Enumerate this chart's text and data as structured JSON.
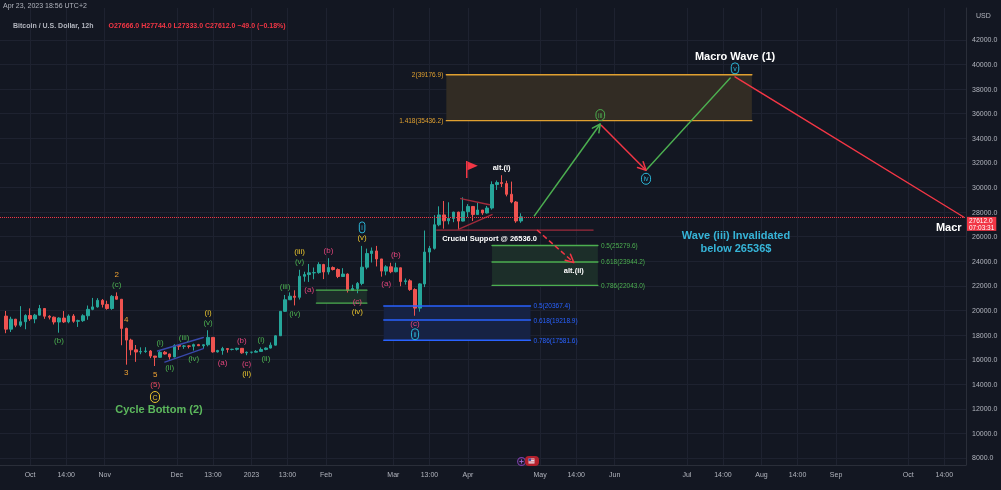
{
  "chart_data": {
    "type": "candlestick",
    "title": "Bitcoin / U.S. Dollar, 12h",
    "subtitle": "O27666.0 H27744.0 L27333.0 C27612.0 −49.0 (−0.18%)",
    "ylabel": "USD",
    "x": [
      "2022-09-21",
      "2022-09-23",
      "2022-09-25",
      "2022-09-27",
      "2022-09-29",
      "2022-10-01",
      "2022-10-03",
      "2022-10-05",
      "2022-10-07",
      "2022-10-09",
      "2022-10-11",
      "2022-10-13",
      "2022-10-15",
      "2022-10-17",
      "2022-10-19",
      "2022-10-21",
      "2022-10-23",
      "2022-10-25",
      "2022-10-27",
      "2022-10-29",
      "2022-10-31",
      "2022-11-02",
      "2022-11-04",
      "2022-11-06",
      "2022-11-08",
      "2022-11-10",
      "2022-11-12",
      "2022-11-14",
      "2022-11-16",
      "2022-11-18",
      "2022-11-20",
      "2022-11-22",
      "2022-11-24",
      "2022-11-26",
      "2022-11-28",
      "2022-11-30",
      "2022-12-02",
      "2022-12-04",
      "2022-12-06",
      "2022-12-08",
      "2022-12-10",
      "2022-12-12",
      "2022-12-14",
      "2022-12-16",
      "2022-12-18",
      "2022-12-20",
      "2022-12-22",
      "2022-12-24",
      "2022-12-26",
      "2022-12-28",
      "2022-12-30",
      "2023-01-01",
      "2023-01-03",
      "2023-01-05",
      "2023-01-07",
      "2023-01-09",
      "2023-01-11",
      "2023-01-13",
      "2023-01-15",
      "2023-01-17",
      "2023-01-19",
      "2023-01-21",
      "2023-01-23",
      "2023-01-25",
      "2023-01-27",
      "2023-01-29",
      "2023-01-31",
      "2023-02-02",
      "2023-02-04",
      "2023-02-06",
      "2023-02-08",
      "2023-02-10",
      "2023-02-12",
      "2023-02-14",
      "2023-02-16",
      "2023-02-18",
      "2023-02-20",
      "2023-02-22",
      "2023-02-24",
      "2023-02-26",
      "2023-02-28",
      "2023-03-02",
      "2023-03-04",
      "2023-03-06",
      "2023-03-08",
      "2023-03-10",
      "2023-03-12",
      "2023-03-14",
      "2023-03-16",
      "2023-03-18",
      "2023-03-20",
      "2023-03-22",
      "2023-03-24",
      "2023-03-26",
      "2023-03-28",
      "2023-03-30",
      "2023-04-01",
      "2023-04-03",
      "2023-04-05",
      "2023-04-07",
      "2023-04-09",
      "2023-04-11",
      "2023-04-13",
      "2023-04-15",
      "2023-04-17",
      "2023-04-19",
      "2023-04-21",
      "2023-04-23"
    ],
    "ohlc": [
      [
        19540,
        19960,
        18150,
        18480
      ],
      [
        18480,
        19490,
        18250,
        19290
      ],
      [
        19290,
        19310,
        18640,
        18800
      ],
      [
        18800,
        20350,
        18660,
        19080
      ],
      [
        19080,
        19690,
        18470,
        19590
      ],
      [
        19590,
        20170,
        19150,
        19310
      ],
      [
        19310,
        19720,
        18960,
        19620
      ],
      [
        19620,
        20450,
        19600,
        20160
      ],
      [
        20160,
        20160,
        19320,
        19530
      ],
      [
        19530,
        19610,
        19270,
        19450
      ],
      [
        19450,
        19510,
        18860,
        19060
      ],
      [
        19060,
        19450,
        18190,
        19380
      ],
      [
        19380,
        19950,
        18980,
        19070
      ],
      [
        19070,
        19680,
        18960,
        19550
      ],
      [
        19550,
        19700,
        19000,
        19120
      ],
      [
        19120,
        19250,
        18660,
        19170
      ],
      [
        19170,
        19690,
        19070,
        19570
      ],
      [
        19570,
        20400,
        19240,
        20090
      ],
      [
        20090,
        21020,
        20020,
        20290
      ],
      [
        20290,
        21000,
        20230,
        20820
      ],
      [
        20820,
        20930,
        20240,
        20490
      ],
      [
        20490,
        20790,
        20060,
        20160
      ],
      [
        20160,
        21250,
        20050,
        21150
      ],
      [
        21150,
        21470,
        20880,
        20910
      ],
      [
        20910,
        20910,
        17170,
        18540
      ],
      [
        18540,
        18600,
        15590,
        17590
      ],
      [
        17590,
        17700,
        16360,
        16800
      ],
      [
        16800,
        17190,
        15820,
        16620
      ],
      [
        16620,
        17000,
        16440,
        16660
      ],
      [
        16660,
        17010,
        16550,
        16700
      ],
      [
        16700,
        16780,
        16120,
        16290
      ],
      [
        16290,
        16300,
        15480,
        16190
      ],
      [
        16190,
        16760,
        16150,
        16600
      ],
      [
        16600,
        16700,
        16410,
        16460
      ],
      [
        16460,
        16480,
        16000,
        16220
      ],
      [
        16220,
        17250,
        16190,
        17160
      ],
      [
        17160,
        17200,
        16790,
        17090
      ],
      [
        17090,
        17190,
        16880,
        17110
      ],
      [
        17110,
        17160,
        16910,
        17090
      ],
      [
        17090,
        17300,
        16740,
        17220
      ],
      [
        17220,
        17280,
        17110,
        17130
      ],
      [
        17130,
        17240,
        16870,
        17210
      ],
      [
        17210,
        18390,
        17080,
        17810
      ],
      [
        17810,
        17840,
        16570,
        16630
      ],
      [
        16630,
        16800,
        16580,
        16740
      ],
      [
        16740,
        17040,
        16400,
        16900
      ],
      [
        16900,
        16940,
        16570,
        16830
      ],
      [
        16830,
        16880,
        16750,
        16840
      ],
      [
        16840,
        16960,
        16740,
        16920
      ],
      [
        16920,
        16940,
        16480,
        16550
      ],
      [
        16550,
        16660,
        16360,
        16600
      ],
      [
        16600,
        16630,
        16500,
        16610
      ],
      [
        16610,
        16780,
        16600,
        16670
      ],
      [
        16670,
        16990,
        16650,
        16830
      ],
      [
        16830,
        16990,
        16760,
        16940
      ],
      [
        16940,
        17400,
        16910,
        17180
      ],
      [
        17180,
        17980,
        17150,
        17940
      ],
      [
        17940,
        19950,
        17920,
        19930
      ],
      [
        19930,
        21260,
        19890,
        20870
      ],
      [
        20870,
        21470,
        20850,
        21160
      ],
      [
        21160,
        21640,
        20410,
        21070
      ],
      [
        21070,
        23310,
        20890,
        22780
      ],
      [
        22780,
        23150,
        22340,
        22920
      ],
      [
        22920,
        23780,
        22320,
        23060
      ],
      [
        23060,
        23490,
        22540,
        23080
      ],
      [
        23080,
        23920,
        22990,
        23740
      ],
      [
        23740,
        23790,
        22550,
        23130
      ],
      [
        23130,
        24250,
        22920,
        23490
      ],
      [
        23490,
        23580,
        23250,
        23330
      ],
      [
        23330,
        23420,
        22630,
        22760
      ],
      [
        22760,
        23440,
        22720,
        22960
      ],
      [
        22960,
        23010,
        21460,
        21630
      ],
      [
        21630,
        22090,
        21610,
        21780
      ],
      [
        21780,
        22310,
        21400,
        22200
      ],
      [
        22200,
        25250,
        22050,
        23520
      ],
      [
        23520,
        25030,
        23350,
        24630
      ],
      [
        24630,
        25120,
        23900,
        24840
      ],
      [
        24840,
        25250,
        23580,
        24190
      ],
      [
        24190,
        24190,
        22750,
        23200
      ],
      [
        23200,
        23680,
        22860,
        23550
      ],
      [
        23550,
        23880,
        23030,
        23150
      ],
      [
        23150,
        23880,
        23100,
        23470
      ],
      [
        23470,
        23480,
        21970,
        22350
      ],
      [
        22350,
        22600,
        22100,
        22410
      ],
      [
        22410,
        22540,
        21590,
        21700
      ],
      [
        21700,
        21800,
        19570,
        20190
      ],
      [
        20190,
        22210,
        19900,
        22160
      ],
      [
        22160,
        26500,
        21900,
        24750
      ],
      [
        24750,
        25250,
        23900,
        25050
      ],
      [
        25050,
        27750,
        24950,
        26970
      ],
      [
        26970,
        28470,
        26850,
        27770
      ],
      [
        27770,
        28900,
        26650,
        27290
      ],
      [
        27290,
        28800,
        27000,
        27480
      ],
      [
        27480,
        28030,
        27180,
        28000
      ],
      [
        28000,
        28030,
        26600,
        27270
      ],
      [
        27270,
        29200,
        27240,
        28030
      ],
      [
        28030,
        28650,
        27600,
        28460
      ],
      [
        28460,
        28490,
        27280,
        27800
      ],
      [
        27800,
        28770,
        27800,
        28170
      ],
      [
        28170,
        28170,
        27770,
        27930
      ],
      [
        27930,
        28500,
        27880,
        28330
      ],
      [
        28330,
        30500,
        28200,
        30240
      ],
      [
        30240,
        30570,
        29800,
        30400
      ],
      [
        30400,
        31000,
        30040,
        30320
      ],
      [
        30320,
        30550,
        29280,
        29450
      ],
      [
        29450,
        30480,
        28720,
        28820
      ],
      [
        28820,
        28900,
        27130,
        27280
      ],
      [
        27280,
        27900,
        27130,
        27612
      ]
    ],
    "series": [
      {
        "type": "line",
        "color": "#f23645",
        "x": [
          "2023-07-21",
          "2023-10-24"
        ],
        "values": [
          39000,
          27600
        ]
      },
      {
        "type": "line",
        "color": "#a02a3a",
        "x": [
          "2023-03-29",
          "2023-04-10"
        ],
        "values": [
          29100,
          28600
        ]
      },
      {
        "type": "line",
        "color": "#a02a3a",
        "x": [
          "2023-03-28",
          "2023-04-11"
        ],
        "values": [
          26600,
          27800
        ]
      },
      {
        "type": "line",
        "color": "#3949ab",
        "x": [
          "2022-11-23",
          "2022-12-12"
        ],
        "values": [
          16700,
          17800
        ]
      },
      {
        "type": "line",
        "color": "#3949ab",
        "x": [
          "2022-11-26",
          "2022-12-12"
        ],
        "values": [
          15800,
          16900
        ]
      },
      {
        "type": "line",
        "color": "#9c2b3c",
        "x": [
          "2023-03-19",
          "2023-05-23"
        ],
        "values": [
          26536,
          26536
        ]
      },
      {
        "type": "line",
        "name": "2(39176.9)",
        "color": "#e0a030",
        "x": [
          "2023-07-28",
          "2023-03-23"
        ],
        "values": [
          39176.9,
          39176.9
        ],
        "lower": [
          35436.2,
          35436.2
        ],
        "upper": [
          39176.9,
          39176.9
        ]
      },
      {
        "type": "line",
        "name": "1.418(35436.2)",
        "color": "#e0a030",
        "x": [
          "2023-07-28",
          "2023-03-23"
        ],
        "values": [
          35436.2,
          35436.2
        ]
      },
      {
        "type": "line",
        "name": "0.5(25279.6)",
        "color": "#4caf50",
        "x": [
          "2023-04-11",
          "2023-05-25"
        ],
        "values": [
          25279.6,
          25279.6
        ],
        "lower": [
          22043.0,
          22043.0
        ],
        "upper": [
          25279.6,
          25279.6
        ]
      },
      {
        "type": "line",
        "name": "0.618(23944.2)",
        "color": "#4caf50",
        "x": [
          "2023-04-11",
          "2023-05-25"
        ],
        "values": [
          23944.2,
          23944.2
        ]
      },
      {
        "type": "line",
        "name": "0.786(22043.0)",
        "color": "#4caf50",
        "x": [
          "2023-04-11",
          "2023-05-25"
        ],
        "values": [
          22043.0,
          22043.0
        ]
      },
      {
        "type": "line",
        "name": "0.5(20367.4)",
        "color": "#2962ff",
        "x": [
          "2023-02-25",
          "2023-04-27"
        ],
        "values": [
          20367.4,
          20367.4
        ],
        "lower": [
          17581.6,
          17581.6
        ],
        "upper": [
          20367.4,
          20367.4
        ]
      },
      {
        "type": "line",
        "name": "0.618(19218.9)",
        "color": "#2962ff",
        "x": [
          "2023-02-25",
          "2023-04-27"
        ],
        "values": [
          19218.9,
          19218.9
        ]
      },
      {
        "type": "line",
        "name": "0.786(17581.6)",
        "color": "#2962ff",
        "x": [
          "2023-02-25",
          "2023-04-27"
        ],
        "values": [
          17581.6,
          17581.6
        ]
      },
      {
        "type": "line",
        "color": "#4caf50",
        "x": [
          "2023-01-28",
          "2023-02-18"
        ],
        "values": [
          21650,
          21650
        ]
      },
      {
        "type": "line",
        "color": "#4caf50",
        "x": [
          "2023-01-28",
          "2023-02-18"
        ],
        "values": [
          20600,
          20600
        ],
        "lower": [
          20600,
          20600
        ],
        "upper": [
          21650,
          21650
        ]
      },
      {
        "type": "line",
        "color": "#4caf50",
        "x": [
          "2023-06-14",
          "2023-07-19"
        ],
        "values": [
          31400,
          38900
        ]
      }
    ],
    "ref_lines": [
      {
        "axis": "y",
        "value": 27612,
        "label": "27612.0\n07:03:31",
        "color": "#f23645",
        "line_style": "dotted"
      }
    ],
    "annotations": [
      "Apr 23, 2023 18:56 UTC+2",
      {
        "text": "(b)",
        "x": "2022-10-13",
        "y": 18190
      },
      {
        "text": "(c)",
        "x": "2022-11-06",
        "y": 21470
      },
      {
        "text": "2",
        "x": "2022-11-06",
        "y": 21470
      },
      {
        "text": "4",
        "x": "2022-11-10",
        "y": 18600
      },
      {
        "text": "3",
        "x": "2022-11-10",
        "y": 15590
      },
      {
        "text": "5",
        "x": "2022-11-22",
        "y": 15480
      },
      {
        "text": "(5)",
        "x": "2022-11-22",
        "y": 15480
      },
      "C",
      "Cycle Bottom (2)",
      {
        "text": "(i)",
        "x": "2022-11-24",
        "y": 16760
      },
      {
        "text": "(ii)",
        "x": "2022-11-28",
        "y": 16000
      },
      {
        "text": "(iii)",
        "x": "2022-12-04",
        "y": 17190
      },
      {
        "text": "(iv)",
        "x": "2022-12-08",
        "y": 16740
      },
      {
        "text": "(v)",
        "x": "2022-12-14",
        "y": 18390
      },
      {
        "text": "(i)",
        "x": "2022-12-14",
        "y": 18390
      },
      {
        "text": "(a)",
        "x": "2022-12-20",
        "y": 16400
      },
      {
        "text": "(b)",
        "x": "2022-12-28",
        "y": 16940
      },
      {
        "text": "(c)",
        "x": "2022-12-30",
        "y": 16360
      },
      {
        "text": "(ii)",
        "x": "2022-12-30",
        "y": 16360
      },
      {
        "text": "(i)",
        "x": "2023-01-05",
        "y": 16990
      },
      {
        "text": "(ii)",
        "x": "2023-01-07",
        "y": 16760
      },
      {
        "text": "(iii)",
        "x": "2023-01-15",
        "y": 21260
      },
      {
        "text": "(iv)",
        "x": "2023-01-19",
        "y": 20410
      },
      {
        "text": "(v)",
        "x": "2023-01-21",
        "y": 23310
      },
      {
        "text": "(iii)",
        "x": "2023-01-21",
        "y": 23310
      },
      {
        "text": "(a)",
        "x": "2023-01-25",
        "y": 22320
      },
      {
        "text": "(b)",
        "x": "2023-02-02",
        "y": 24250
      },
      {
        "text": "(c)",
        "x": "2023-02-14",
        "y": 21400
      },
      {
        "text": "(iv)",
        "x": "2023-02-14",
        "y": 21400
      },
      {
        "text": "(v)",
        "x": "2023-02-16",
        "y": 25250
      },
      {
        "text": "i",
        "x": "2023-02-16",
        "y": 25250
      },
      {
        "text": "(a)",
        "x": "2023-02-26",
        "y": 22860
      },
      {
        "text": "(b)",
        "x": "2023-03-02",
        "y": 23880
      },
      {
        "text": "(c)",
        "x": "2023-03-10",
        "y": 19570
      },
      {
        "text": "ii",
        "x": "2023-03-10",
        "y": 19570
      },
      {
        "text": "alt.(i)",
        "x": "2023-04-15",
        "y": 31000
      },
      {
        "text": "Crucial Support @ 26536.0",
        "x": "2023-04-10",
        "y": 26536
      },
      {
        "text": "iii",
        "x": "2023-05-26",
        "y": 35200
      },
      {
        "text": "iv",
        "x": "2023-06-14",
        "y": 31400
      },
      {
        "text": "v",
        "x": "2023-07-21",
        "y": 39000
      },
      {
        "text": "Macro Wave (1)",
        "x": "2023-07-21",
        "y": 39000
      },
      {
        "text": "alt.(ii)",
        "x": "2023-05-15",
        "y": 23900
      },
      {
        "text": "Macr",
        "x": "2023-10-24",
        "y": 27600
      },
      "Wave (iii) Invalidated\nbelow 26536$"
    ],
    "xlim": [
      "2022-09-18T12:00",
      "2023-10-25"
    ],
    "xticks": [
      {
        "value": "2022-10-01",
        "label": "Oct"
      },
      {
        "value": "2022-10-16",
        "label": "14:00"
      },
      {
        "value": "2022-11-01",
        "label": "Nov"
      },
      {
        "value": "2022-12-01",
        "label": "Dec"
      },
      {
        "value": "2022-12-16",
        "label": "13:00"
      },
      {
        "value": "2023-01-01",
        "label": "2023"
      },
      {
        "value": "2023-01-16",
        "label": "13:00"
      },
      {
        "value": "2023-02-01",
        "label": "Feb"
      },
      {
        "value": "2023-03-01",
        "label": "Mar"
      },
      {
        "value": "2023-03-16",
        "label": "13:00"
      },
      {
        "value": "2023-04-01",
        "label": "Apr"
      },
      {
        "value": "2023-05-01",
        "label": "May"
      },
      {
        "value": "2023-05-16",
        "label": "14:00"
      },
      {
        "value": "2023-06-01",
        "label": "Jun"
      },
      {
        "value": "2023-07-01",
        "label": "Jul"
      },
      {
        "value": "2023-07-16",
        "label": "14:00"
      },
      {
        "value": "2023-08-01",
        "label": "Aug"
      },
      {
        "value": "2023-08-16",
        "label": "14:00"
      },
      {
        "value": "2023-09-01",
        "label": "Sep"
      },
      {
        "value": "2023-10-01",
        "label": "Oct"
      },
      {
        "value": "2023-10-16",
        "label": "14:00"
      }
    ],
    "ylim": [
      7430,
      44600
    ],
    "yticks": [
      {
        "value": 8000,
        "label": "8000.0"
      },
      {
        "value": 10000,
        "label": "10000.0"
      },
      {
        "value": 12000,
        "label": "12000.0"
      },
      {
        "value": 14000,
        "label": "14000.0"
      },
      {
        "value": 16000,
        "label": "16000.0"
      },
      {
        "value": 18000,
        "label": "18000.0"
      },
      {
        "value": 20000,
        "label": "20000.0"
      },
      {
        "value": 22000,
        "label": "22000.0"
      },
      {
        "value": 24000,
        "label": "24000.0"
      },
      {
        "value": 26000,
        "label": "26000.0"
      },
      {
        "value": 28000,
        "label": "28000.0"
      },
      {
        "value": 30000,
        "label": "30000.0"
      },
      {
        "value": 32000,
        "label": "32000.0"
      },
      {
        "value": 34000,
        "label": "34000.0"
      },
      {
        "value": 36000,
        "label": "36000.0"
      },
      {
        "value": 38000,
        "label": "38000.0"
      },
      {
        "value": 40000,
        "label": "40000.0"
      },
      {
        "value": 42000,
        "label": "42000.0"
      }
    ],
    "grid": true
  }
}
